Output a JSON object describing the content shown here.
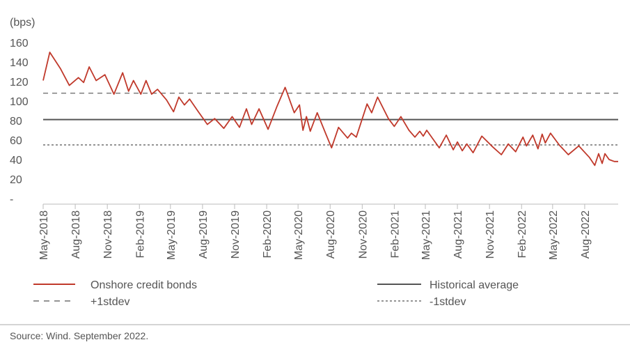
{
  "chart_data": {
    "type": "line",
    "unit_label": "(bps)",
    "y_ticks": [
      "160",
      "140",
      "120",
      "100",
      "80",
      "60",
      "40",
      "20",
      "-"
    ],
    "ylim": [
      0,
      160
    ],
    "x_tick_labels": [
      "May-2018",
      "Aug-2018",
      "Nov-2018",
      "Feb-2019",
      "May-2019",
      "Aug-2019",
      "Nov-2019",
      "Feb-2020",
      "May-2020",
      "Aug-2020",
      "Nov-2020",
      "Feb-2021",
      "May-2021",
      "Aug-2021",
      "Nov-2021",
      "Feb-2022",
      "May-2022",
      "Aug-2022"
    ],
    "series": [
      {
        "name": "Onshore credit bonds",
        "color": "#c0392b",
        "style": "solid",
        "points": [
          [
            "2018-05-01",
            121
          ],
          [
            "2018-05-20",
            150
          ],
          [
            "2018-06-20",
            133
          ],
          [
            "2018-07-15",
            116
          ],
          [
            "2018-08-10",
            124
          ],
          [
            "2018-08-25",
            119
          ],
          [
            "2018-09-10",
            135
          ],
          [
            "2018-09-30",
            121
          ],
          [
            "2018-10-25",
            127
          ],
          [
            "2018-11-20",
            107
          ],
          [
            "2018-12-15",
            129
          ],
          [
            "2019-01-01",
            110
          ],
          [
            "2019-01-15",
            121
          ],
          [
            "2019-02-05",
            107
          ],
          [
            "2019-02-20",
            121
          ],
          [
            "2019-03-08",
            107
          ],
          [
            "2019-03-25",
            112
          ],
          [
            "2019-04-20",
            101
          ],
          [
            "2019-05-10",
            89
          ],
          [
            "2019-05-25",
            104
          ],
          [
            "2019-06-10",
            96
          ],
          [
            "2019-06-25",
            102
          ],
          [
            "2019-07-20",
            89
          ],
          [
            "2019-08-15",
            76
          ],
          [
            "2019-09-05",
            82
          ],
          [
            "2019-10-01",
            72
          ],
          [
            "2019-10-25",
            84
          ],
          [
            "2019-11-15",
            73
          ],
          [
            "2019-12-05",
            92
          ],
          [
            "2019-12-20",
            76
          ],
          [
            "2020-01-10",
            92
          ],
          [
            "2020-02-05",
            71
          ],
          [
            "2020-03-01",
            94
          ],
          [
            "2020-03-25",
            114
          ],
          [
            "2020-04-20",
            88
          ],
          [
            "2020-05-05",
            96
          ],
          [
            "2020-05-15",
            70
          ],
          [
            "2020-05-25",
            84
          ],
          [
            "2020-06-05",
            69
          ],
          [
            "2020-06-25",
            88
          ],
          [
            "2020-07-20",
            66
          ],
          [
            "2020-08-05",
            52
          ],
          [
            "2020-08-25",
            73
          ],
          [
            "2020-09-20",
            62
          ],
          [
            "2020-10-01",
            67
          ],
          [
            "2020-10-15",
            63
          ],
          [
            "2020-11-15",
            97
          ],
          [
            "2020-11-28",
            88
          ],
          [
            "2020-12-15",
            104
          ],
          [
            "2021-01-15",
            82
          ],
          [
            "2021-02-01",
            74
          ],
          [
            "2021-02-20",
            84
          ],
          [
            "2021-03-15",
            70
          ],
          [
            "2021-04-01",
            63
          ],
          [
            "2021-04-15",
            69
          ],
          [
            "2021-04-25",
            64
          ],
          [
            "2021-05-05",
            70
          ],
          [
            "2021-05-25",
            60
          ],
          [
            "2021-06-10",
            52
          ],
          [
            "2021-06-30",
            65
          ],
          [
            "2021-07-20",
            50
          ],
          [
            "2021-08-01",
            58
          ],
          [
            "2021-08-15",
            49
          ],
          [
            "2021-08-28",
            56
          ],
          [
            "2021-09-15",
            47
          ],
          [
            "2021-10-10",
            64
          ],
          [
            "2021-11-10",
            53
          ],
          [
            "2021-12-05",
            45
          ],
          [
            "2021-12-25",
            56
          ],
          [
            "2022-01-15",
            48
          ],
          [
            "2022-02-05",
            63
          ],
          [
            "2022-02-15",
            54
          ],
          [
            "2022-03-05",
            65
          ],
          [
            "2022-03-20",
            51
          ],
          [
            "2022-04-01",
            66
          ],
          [
            "2022-04-10",
            57
          ],
          [
            "2022-04-25",
            67
          ],
          [
            "2022-05-20",
            55
          ],
          [
            "2022-06-15",
            45
          ],
          [
            "2022-07-15",
            54
          ],
          [
            "2022-08-15",
            42
          ],
          [
            "2022-08-30",
            34
          ],
          [
            "2022-09-10",
            46
          ],
          [
            "2022-09-20",
            36
          ],
          [
            "2022-09-28",
            46
          ],
          [
            "2022-10-10",
            40
          ],
          [
            "2022-10-25",
            38
          ],
          [
            "2022-11-05",
            38
          ]
        ]
      },
      {
        "name": "Historical average",
        "color": "#555555",
        "style": "solid",
        "value": 81
      },
      {
        "name": "+1stdev",
        "color": "#555555",
        "style": "dashed",
        "value": 108
      },
      {
        "name": "-1stdev",
        "color": "#555555",
        "style": "dotted",
        "value": 55
      }
    ],
    "legend_position": "bottom",
    "grid": false
  },
  "source": "Source: Wind. September 2022."
}
